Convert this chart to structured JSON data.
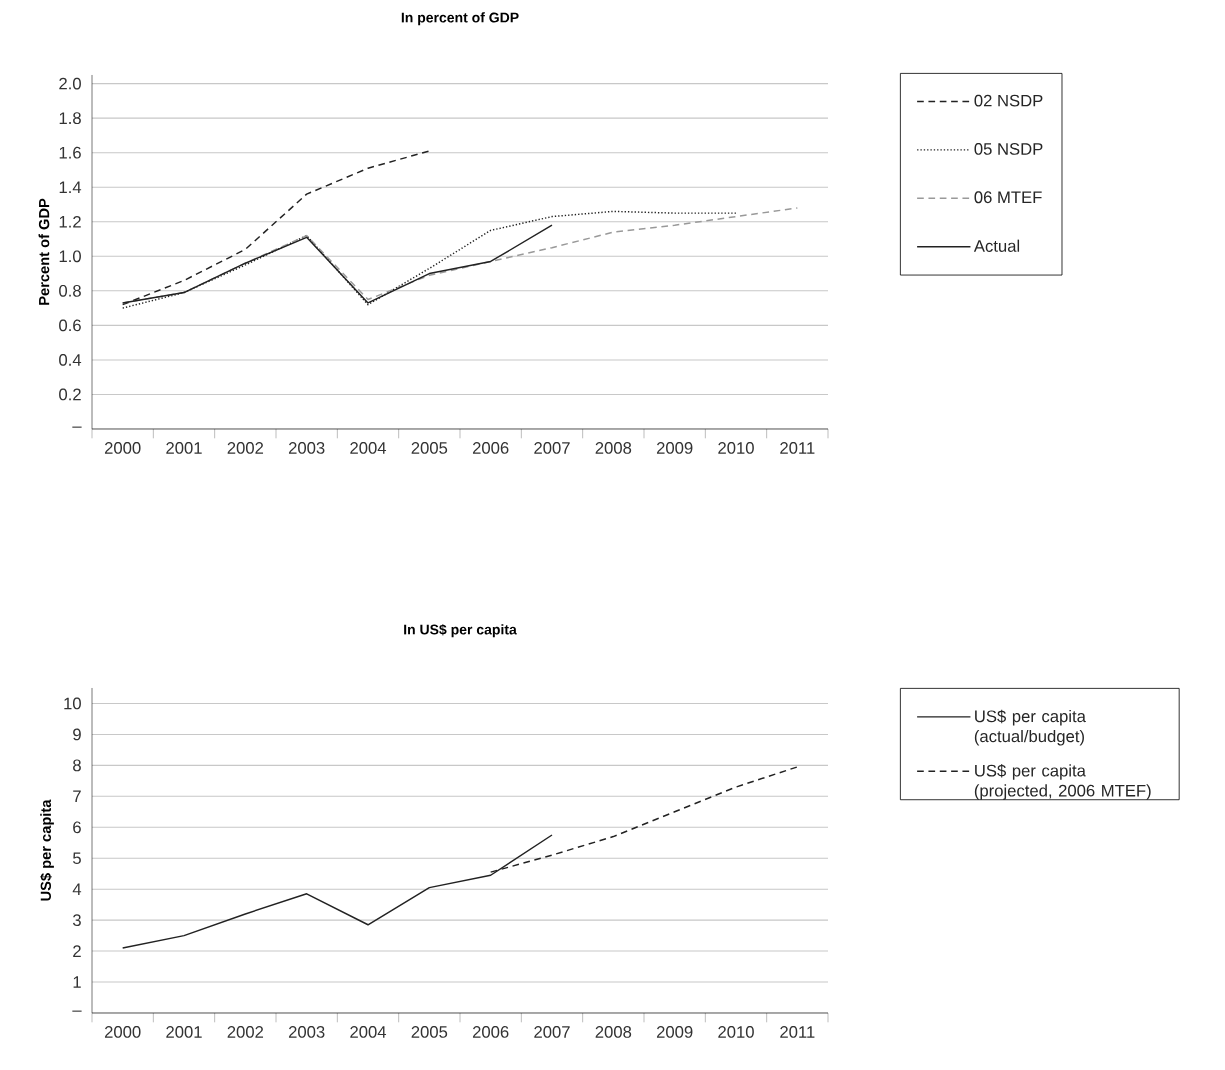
{
  "chart_data": [
    {
      "type": "line",
      "title": "In percent of GDP",
      "ylabel": "Percent of GDP",
      "categories": [
        "2000",
        "2001",
        "2002",
        "2003",
        "2004",
        "2005",
        "2006",
        "2007",
        "2008",
        "2009",
        "2010",
        "2011"
      ],
      "series": [
        {
          "name": "02 NSDP",
          "color": "#222222",
          "line_style": "dashed",
          "values": [
            0.72,
            0.86,
            1.04,
            1.36,
            1.51,
            1.61,
            null,
            null,
            null,
            null,
            null,
            null
          ]
        },
        {
          "name": "05 NSDP",
          "color": "#222222",
          "line_style": "dotted",
          "values": [
            0.7,
            0.79,
            0.95,
            1.12,
            0.72,
            0.93,
            1.15,
            1.23,
            1.26,
            1.25,
            1.25,
            null
          ]
        },
        {
          "name": "06 MTEF",
          "color": "#999999",
          "line_style": "dashed",
          "values": [
            0.73,
            0.79,
            0.96,
            1.12,
            0.75,
            0.89,
            0.97,
            1.05,
            1.14,
            1.18,
            1.23,
            1.28
          ]
        },
        {
          "name": "Actual",
          "color": "#222222",
          "line_style": "solid",
          "values": [
            0.73,
            0.79,
            0.96,
            1.11,
            0.73,
            0.9,
            0.97,
            1.18,
            null,
            null,
            null,
            null
          ]
        }
      ],
      "ylim": [
        0,
        2.05
      ],
      "yticks": [
        {
          "value": 0,
          "label": "–"
        },
        0.2,
        0.4,
        0.6,
        0.8,
        {
          "value": 1.0,
          "label": "1.0"
        },
        1.2,
        1.4,
        1.6,
        1.8,
        {
          "value": 2.0,
          "label": "2.0"
        }
      ],
      "grid": "y",
      "legend": "right"
    },
    {
      "type": "line",
      "title": "In US$ per capita",
      "ylabel": "US$ per capita",
      "categories": [
        "2000",
        "2001",
        "2002",
        "2003",
        "2004",
        "2005",
        "2006",
        "2007",
        "2008",
        "2009",
        "2010",
        "2011"
      ],
      "series": [
        {
          "name": "US$ per capita (actual/budget)",
          "color": "#222222",
          "line_style": "solid",
          "values": [
            2.1,
            2.5,
            3.2,
            3.85,
            2.85,
            4.05,
            4.45,
            5.75,
            null,
            null,
            null,
            null
          ]
        },
        {
          "name": "US$ per capita (projected, 2006 MTEF)",
          "color": "#222222",
          "line_style": "dashed",
          "values": [
            null,
            null,
            null,
            null,
            null,
            null,
            4.55,
            5.1,
            5.7,
            6.5,
            7.3,
            7.95
          ]
        }
      ],
      "ylim": [
        0,
        10.5
      ],
      "yticks": [
        {
          "value": 0,
          "label": "–"
        },
        1,
        2,
        3,
        4,
        5,
        6,
        7,
        8,
        9,
        10
      ],
      "grid": "y",
      "legend": "right"
    }
  ]
}
